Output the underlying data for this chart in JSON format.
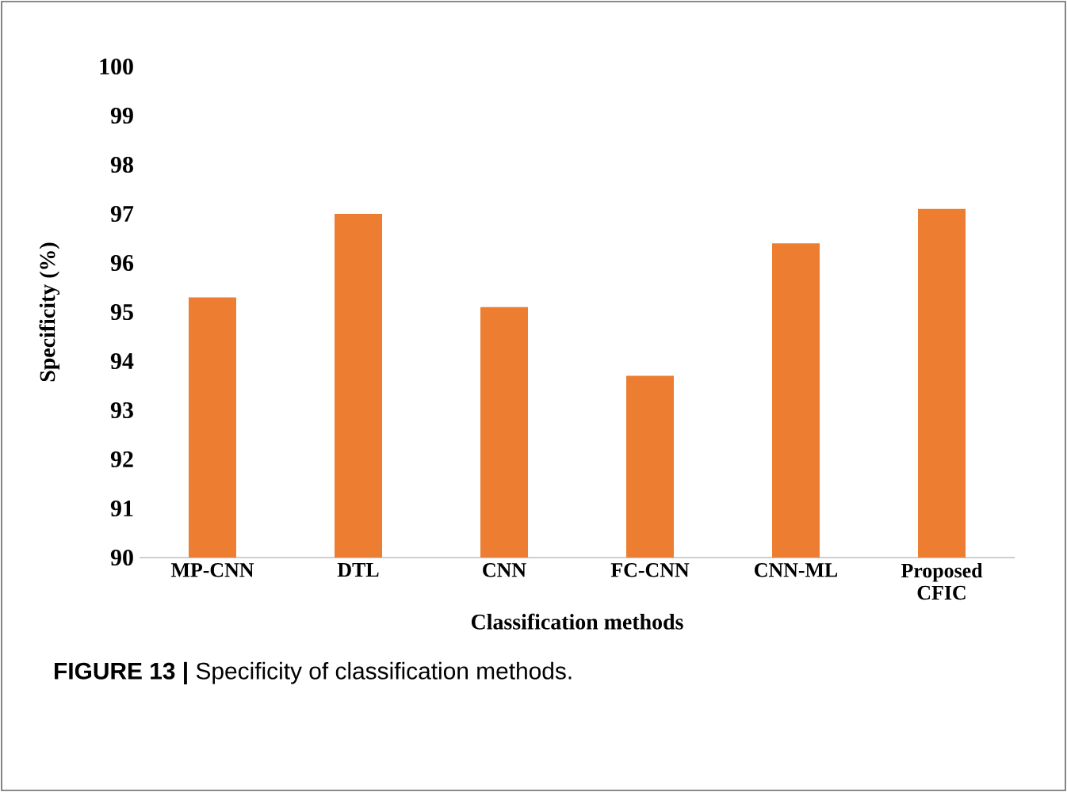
{
  "chart_data": {
    "type": "bar",
    "xlabel": "Classification methods",
    "ylabel": "Specificity (%)",
    "categories": [
      "MP-CNN",
      "DTL",
      "CNN",
      "FC-CNN",
      "CNN-ML",
      "Proposed CFIC"
    ],
    "values": [
      95.3,
      97.0,
      95.1,
      93.7,
      96.4,
      97.1
    ],
    "color": "#ed7d31",
    "ylim": [
      90,
      100
    ],
    "yticks": [
      90,
      91,
      92,
      93,
      94,
      95,
      96,
      97,
      98,
      99,
      100
    ],
    "annotations": [
      "**FIGURE 13 |** Specificity of classification methods."
    ]
  }
}
